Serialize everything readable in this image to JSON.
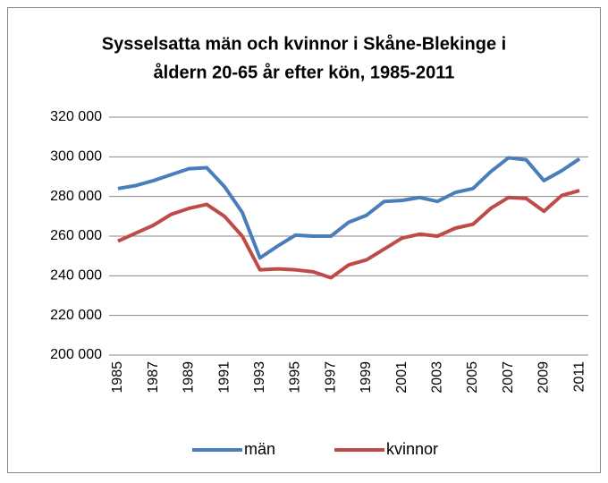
{
  "chart_data": {
    "type": "line",
    "title": [
      "Sysselsatta män och kvinnor i Skåne-Blekinge i",
      "åldern 20-65 år efter kön, 1985-2011"
    ],
    "categories": [
      "1985",
      null,
      "1987",
      null,
      "1989",
      null,
      "1991",
      null,
      "1993",
      null,
      "1995",
      null,
      "1997",
      null,
      "1999",
      null,
      "2001",
      null,
      "2003",
      null,
      "2005",
      null,
      "2007",
      null,
      "2009",
      null,
      "2011"
    ],
    "series": [
      {
        "name": "män",
        "color": "#4a7ebb",
        "values": [
          284000,
          285500,
          288000,
          291000,
          294000,
          294500,
          285000,
          272000,
          249000,
          255000,
          260500,
          260000,
          260000,
          267000,
          270500,
          277500,
          278000,
          279500,
          277500,
          282000,
          284000,
          292500,
          299500,
          298500,
          288000,
          293000,
          299000
        ]
      },
      {
        "name": "kvinnor",
        "color": "#be4b48",
        "values": [
          257500,
          261500,
          265500,
          271000,
          274000,
          276000,
          270000,
          260000,
          243000,
          243500,
          243000,
          242000,
          239000,
          245500,
          248000,
          253500,
          259000,
          261000,
          260000,
          264000,
          266000,
          274000,
          279500,
          279000,
          272500,
          280500,
          283000
        ]
      }
    ],
    "ylim": [
      200000,
      320000
    ],
    "yticks": [
      {
        "value": 200000,
        "label": "200 000"
      },
      {
        "value": 220000,
        "label": "220 000"
      },
      {
        "value": 240000,
        "label": "240 000"
      },
      {
        "value": 260000,
        "label": "260 000"
      },
      {
        "value": 280000,
        "label": "280 000"
      },
      {
        "value": 300000,
        "label": "300 000"
      },
      {
        "value": 320000,
        "label": "320 000"
      }
    ],
    "grid": true,
    "legend": "bottom"
  }
}
